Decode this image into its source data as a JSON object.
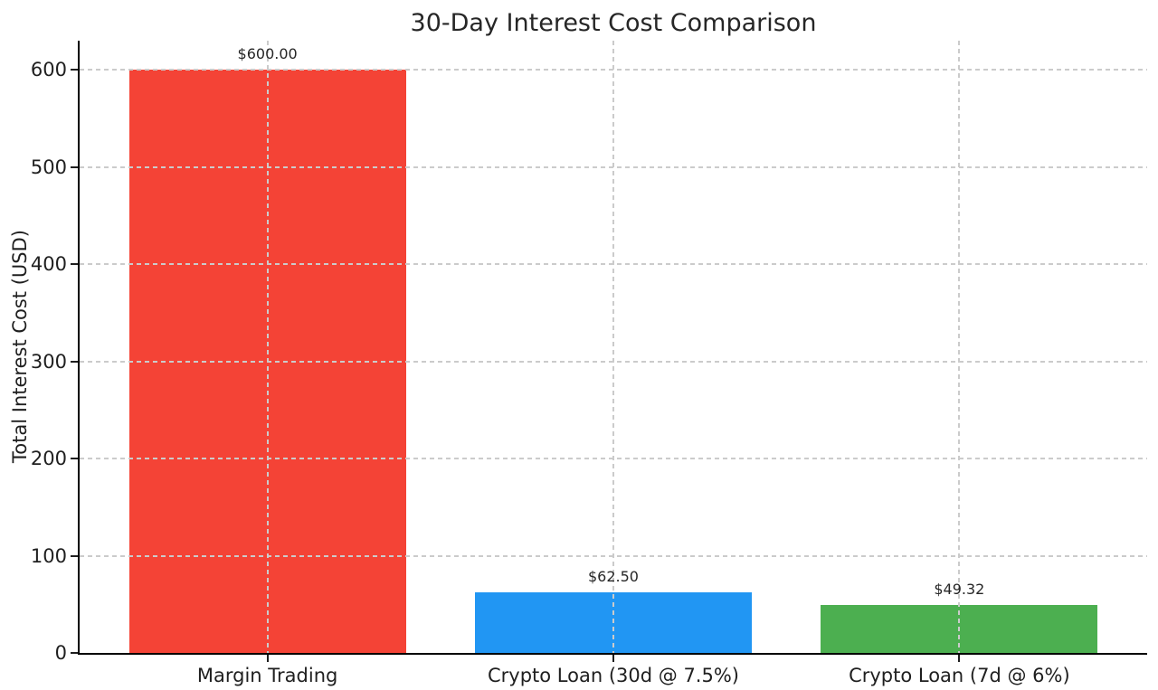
{
  "chart_data": {
    "type": "bar",
    "title": "30-Day Interest Cost Comparison",
    "xlabel": "",
    "ylabel": "Total Interest Cost (USD)",
    "categories": [
      "Margin Trading",
      "Crypto Loan (30d @ 7.5%)",
      "Crypto Loan (7d @ 6%)"
    ],
    "values": [
      600.0,
      62.5,
      49.32
    ],
    "bar_labels": [
      "$600.00",
      "$62.50",
      "$49.32"
    ],
    "bar_colors": [
      "#f44336",
      "#2196f3",
      "#4caf50"
    ],
    "yticks": [
      0,
      100,
      200,
      300,
      400,
      500,
      600
    ],
    "ylim": [
      0,
      630
    ],
    "xlim": [
      -0.543,
      2.543
    ],
    "bar_width_fraction": 0.8,
    "grid": true,
    "grid_style": "dashed",
    "grid_color": "#cbcbcb",
    "grid_above_bars": true,
    "visible_spines": [
      "left",
      "bottom"
    ],
    "spine_color": "#000000",
    "text_color": "#262626",
    "background_color": "#ffffff",
    "legend": null
  }
}
